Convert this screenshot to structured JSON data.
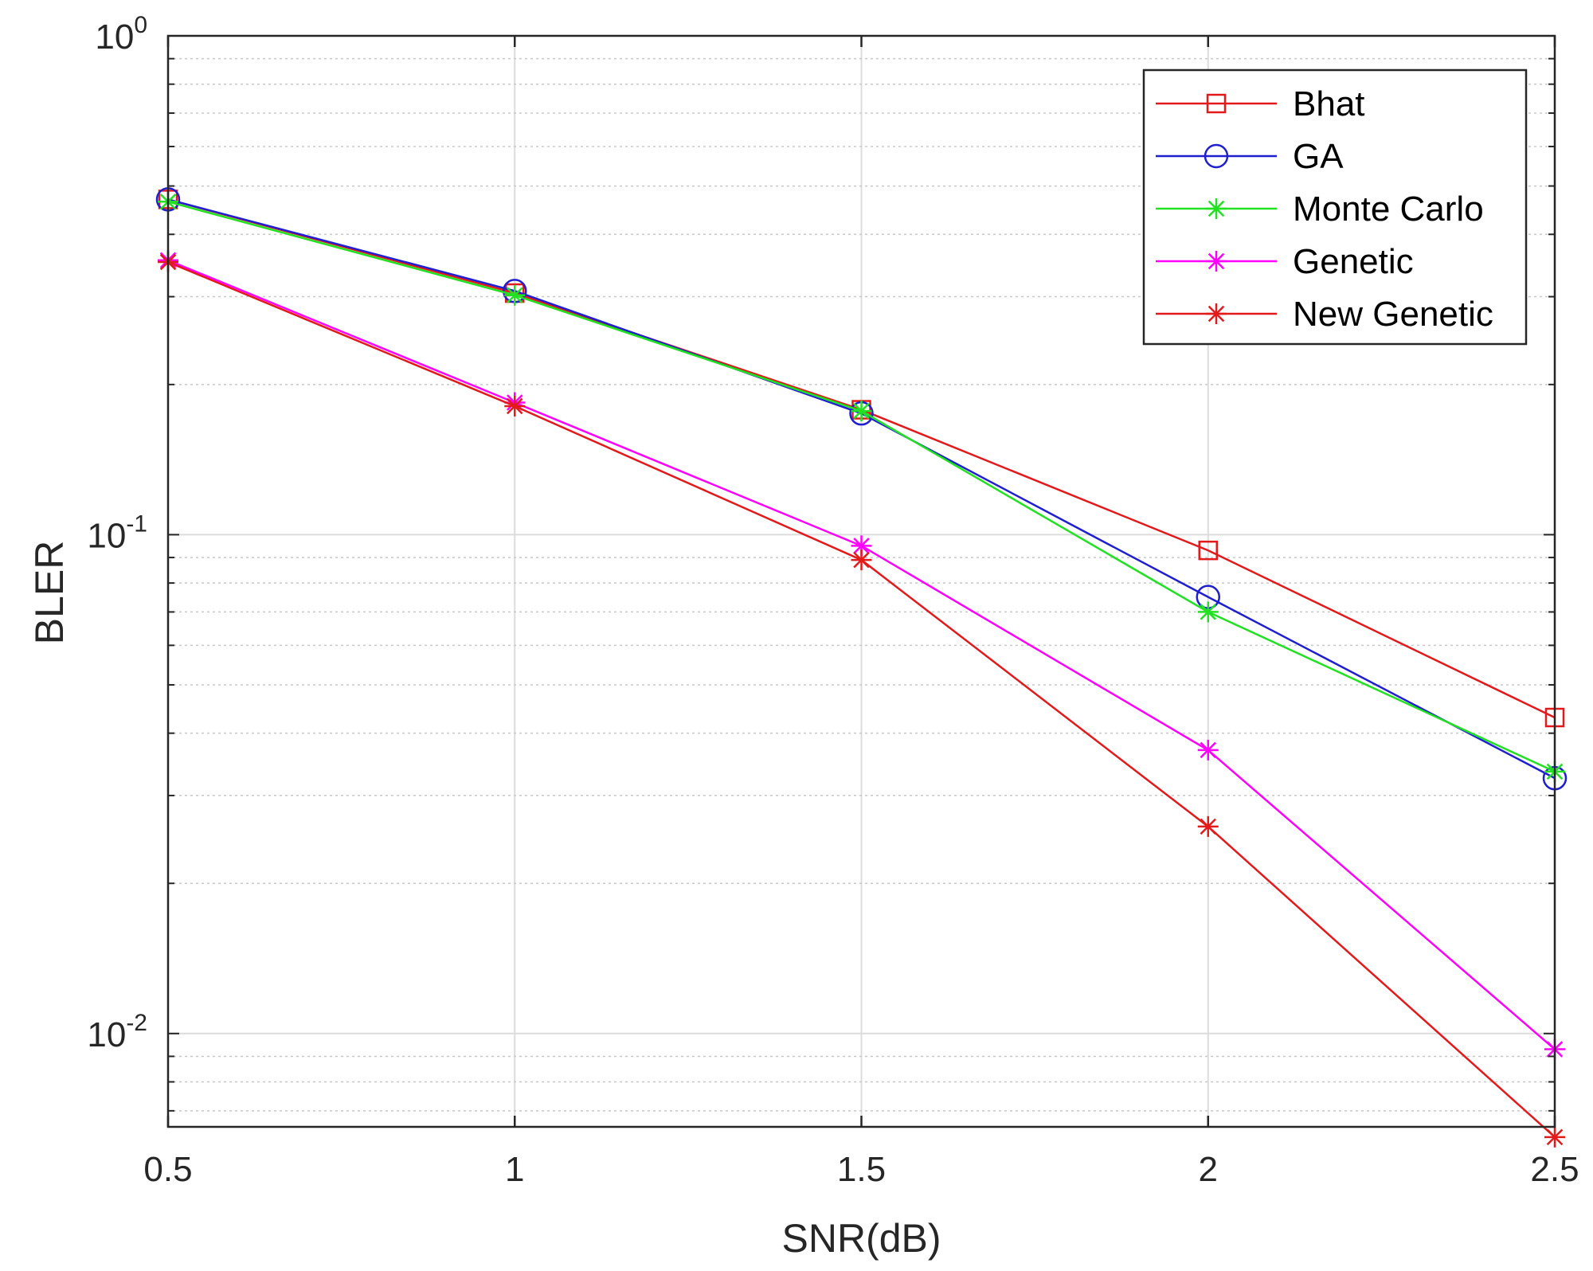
{
  "chart_data": {
    "type": "line",
    "title": "",
    "xlabel": "SNR(dB)",
    "ylabel": "BLER",
    "yscale": "log",
    "xlim": [
      0.5,
      2.5
    ],
    "ylim": [
      0.0065,
      1.0
    ],
    "grid": true,
    "legend_position": "top-right",
    "x": [
      0.5,
      1,
      1.5,
      2,
      2.5
    ],
    "x_tick_labels": [
      "0.5",
      "1",
      "1.5",
      "2",
      "2.5"
    ],
    "y_ticks": [
      {
        "value": 1,
        "base": "10",
        "exp": "0"
      },
      {
        "value": 0.1,
        "base": "10",
        "exp": "-1"
      },
      {
        "value": 0.01,
        "base": "10",
        "exp": "-2"
      }
    ],
    "series": [
      {
        "name": "Bhat",
        "color": "#e31a1c",
        "marker": "square",
        "values": [
          0.47,
          0.305,
          0.178,
          0.093,
          0.043
        ]
      },
      {
        "name": "GA",
        "color": "#1f1fd0",
        "marker": "circle",
        "values": [
          0.47,
          0.308,
          0.175,
          0.075,
          0.0325
        ]
      },
      {
        "name": "Monte Carlo",
        "color": "#22e022",
        "marker": "asterisk",
        "values": [
          0.465,
          0.302,
          0.177,
          0.07,
          0.0335
        ]
      },
      {
        "name": "Genetic",
        "color": "#ff00ff",
        "marker": "asterisk",
        "values": [
          0.355,
          0.184,
          0.095,
          0.037,
          0.0093
        ]
      },
      {
        "name": "New Genetic",
        "color": "#e31a1c",
        "marker": "asterisk",
        "values": [
          0.352,
          0.181,
          0.089,
          0.026,
          0.0062
        ]
      }
    ]
  }
}
